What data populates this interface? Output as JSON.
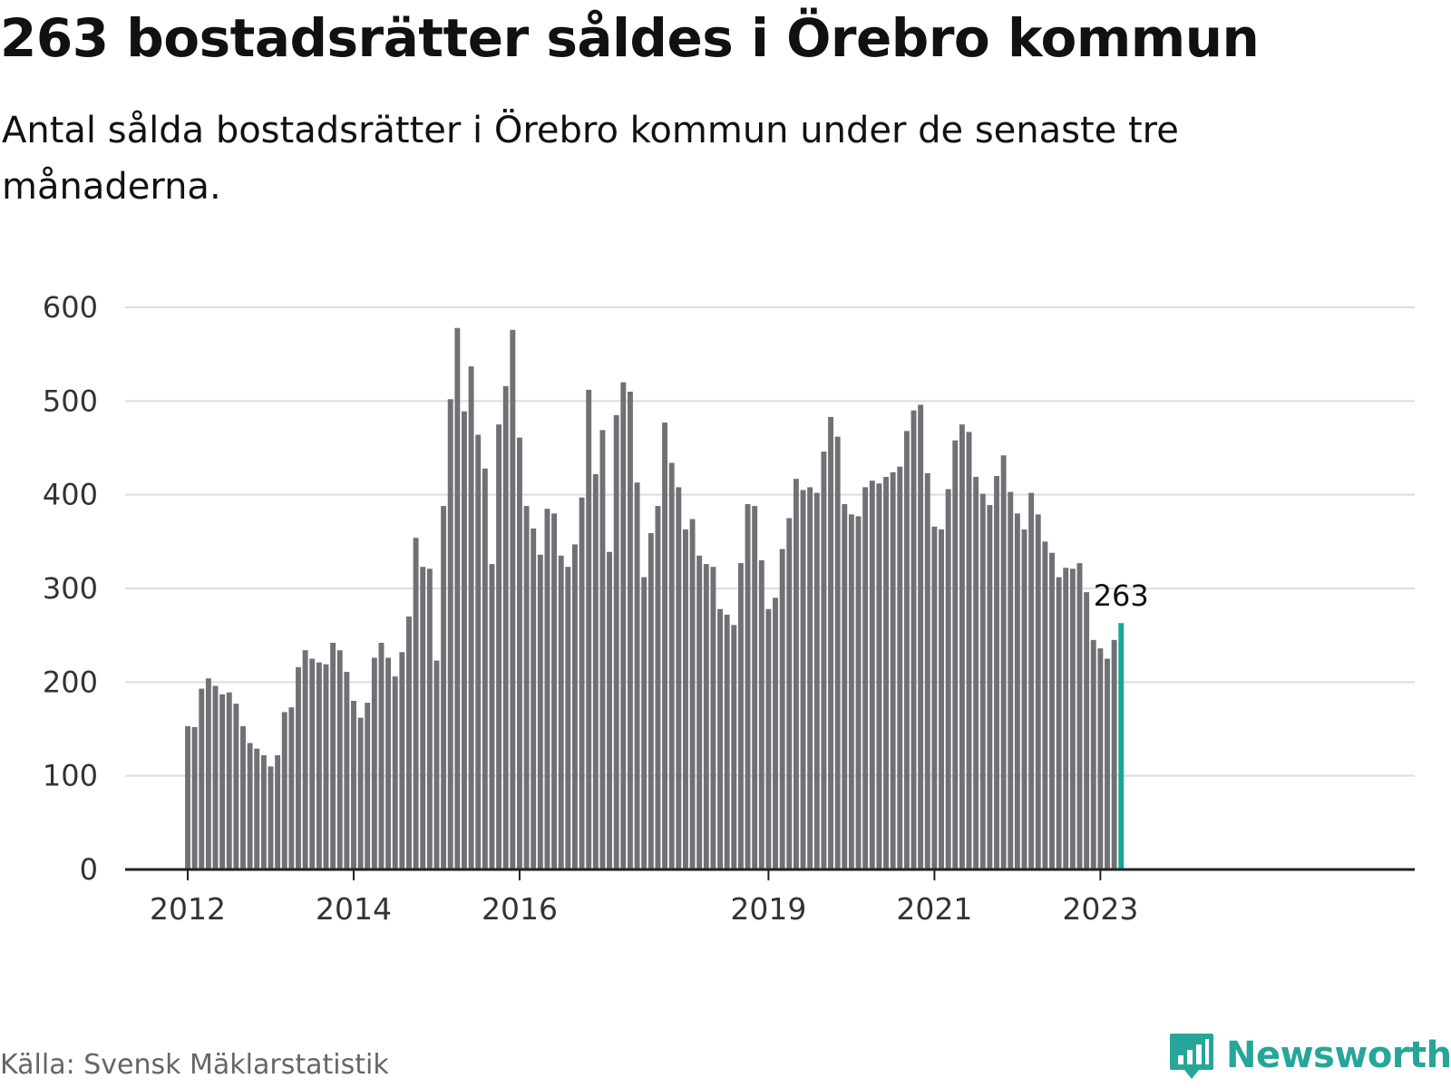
{
  "title": "263 bostadsrätter såldes i Örebro kommun",
  "subtitle": "Antal sålda bostadsrätter i Örebro kommun under de senaste tre månaderna.",
  "source": "Källa: Svensk Mäklarstatistik",
  "brand": "Newsworthy",
  "colors": {
    "bar": "#707075",
    "highlight": "#1ba39a",
    "grid": "#dddddd",
    "axis": "#222222",
    "brand": "#26a69a"
  },
  "chart_data": {
    "type": "bar",
    "title": "263 bostadsrätter såldes i Örebro kommun",
    "subtitle": "Antal sålda bostadsrätter i Örebro kommun under de senaste tre månaderna.",
    "xlabel": "",
    "ylabel": "",
    "ylim": [
      0,
      600
    ],
    "yticks": [
      0,
      100,
      200,
      300,
      400,
      500,
      600
    ],
    "xticks": [
      {
        "label": "2012",
        "index": 0
      },
      {
        "label": "2014",
        "index": 24
      },
      {
        "label": "2016",
        "index": 48
      },
      {
        "label": "2019",
        "index": 84
      },
      {
        "label": "2021",
        "index": 108
      },
      {
        "label": "2023",
        "index": 132
      }
    ],
    "grid": true,
    "start": "2012-01",
    "period": "month",
    "highlight_index": 135,
    "highlight_label": "263",
    "values": [
      153,
      152,
      193,
      204,
      196,
      187,
      189,
      177,
      153,
      135,
      129,
      122,
      110,
      122,
      168,
      173,
      216,
      234,
      225,
      221,
      219,
      242,
      234,
      211,
      180,
      162,
      178,
      226,
      242,
      226,
      206,
      232,
      270,
      354,
      323,
      321,
      223,
      388,
      502,
      578,
      489,
      537,
      464,
      428,
      326,
      475,
      516,
      576,
      461,
      388,
      364,
      336,
      385,
      380,
      335,
      323,
      347,
      397,
      512,
      422,
      469,
      339,
      485,
      520,
      510,
      413,
      312,
      359,
      388,
      477,
      434,
      408,
      363,
      374,
      335,
      326,
      323,
      278,
      272,
      261,
      327,
      390,
      388,
      330,
      278,
      290,
      342,
      375,
      417,
      405,
      408,
      402,
      446,
      483,
      462,
      390,
      379,
      377,
      408,
      415,
      412,
      419,
      424,
      430,
      468,
      490,
      496,
      423,
      366,
      363,
      406,
      458,
      475,
      467,
      419,
      401,
      389,
      420,
      442,
      403,
      380,
      363,
      402,
      379,
      350,
      338,
      312,
      322,
      321,
      327,
      296,
      245,
      236,
      225,
      245,
      263
    ]
  }
}
